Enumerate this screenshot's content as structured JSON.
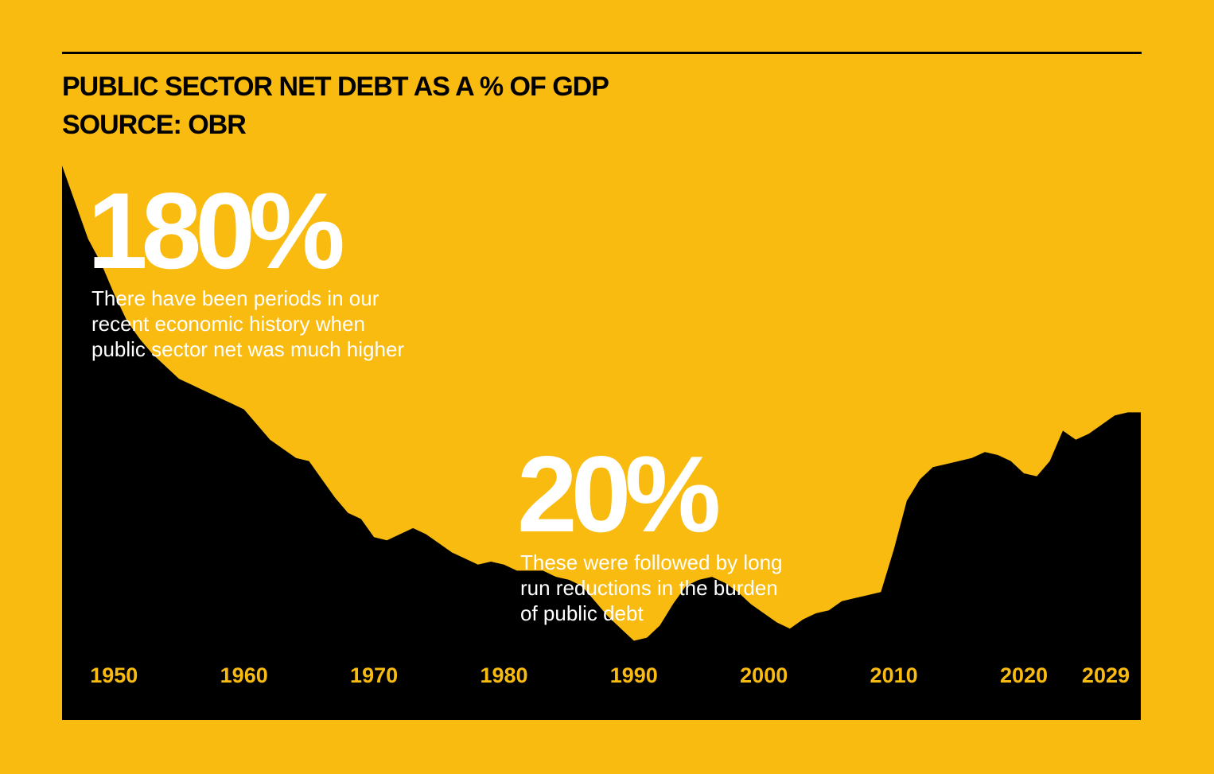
{
  "header": {
    "title": "PUBLIC SECTOR NET DEBT AS A % OF GDP",
    "subtitle": "SOURCE: OBR"
  },
  "callouts": [
    {
      "value": "180%",
      "lines": [
        "There have been periods in our",
        "recent economic history when",
        "public sector net was much higher"
      ]
    },
    {
      "value": "20%",
      "lines": [
        "These were followed by long",
        "run reductions in the burden",
        "of public debt"
      ]
    }
  ],
  "colors": {
    "background": "#F9BB10",
    "area": "#000000",
    "tick_label": "#F9BB10",
    "callout": "#FFFFFF"
  },
  "chart_data": {
    "type": "area",
    "title": "PUBLIC SECTOR NET DEBT AS A % OF GDP",
    "xlabel": "",
    "ylabel": "",
    "xlim": [
      1946,
      2029
    ],
    "ylim": [
      0,
      180
    ],
    "grid": false,
    "legend": "none",
    "x_ticks": [
      1950,
      1960,
      1970,
      1980,
      1990,
      2000,
      2010,
      2020,
      2029
    ],
    "series": [
      {
        "x": [
          1946,
          1948,
          1949,
          1950,
          1951,
          1952,
          1953,
          1954,
          1955,
          1956,
          1957,
          1958,
          1959,
          1960,
          1961,
          1962,
          1963,
          1964,
          1965,
          1966,
          1967,
          1968,
          1969,
          1970,
          1971,
          1972,
          1973,
          1974,
          1975,
          1976,
          1977,
          1978,
          1979,
          1980,
          1981,
          1982,
          1983,
          1984,
          1985,
          1986,
          1987,
          1988,
          1989,
          1990,
          1991,
          1992,
          1993,
          1994,
          1995,
          1996,
          1997,
          1998,
          1999,
          2000,
          2001,
          2002,
          2003,
          2004,
          2005,
          2006,
          2007,
          2008,
          2009,
          2010,
          2011,
          2012,
          2013,
          2014,
          2015,
          2016,
          2017,
          2018,
          2019,
          2020,
          2021,
          2022,
          2023,
          2024,
          2025,
          2026,
          2027,
          2028,
          2029
        ],
        "values": [
          182,
          158,
          150,
          140,
          131,
          125,
          120,
          116,
          112,
          110,
          108,
          106,
          104,
          102,
          97,
          92,
          89,
          86,
          85,
          79,
          73,
          68,
          66,
          60,
          59,
          61,
          63,
          61,
          58,
          55,
          53,
          51,
          52,
          51,
          49,
          49,
          49,
          47,
          46,
          44,
          39,
          34,
          30,
          26,
          27,
          31,
          38,
          44,
          46,
          47,
          45,
          42,
          38,
          35,
          32,
          30,
          33,
          35,
          36,
          39,
          40,
          41,
          42,
          56,
          72,
          79,
          83,
          84,
          85,
          86,
          88,
          87,
          85,
          81,
          80,
          85,
          95,
          92,
          94,
          97,
          100,
          101,
          101
        ]
      }
    ]
  }
}
